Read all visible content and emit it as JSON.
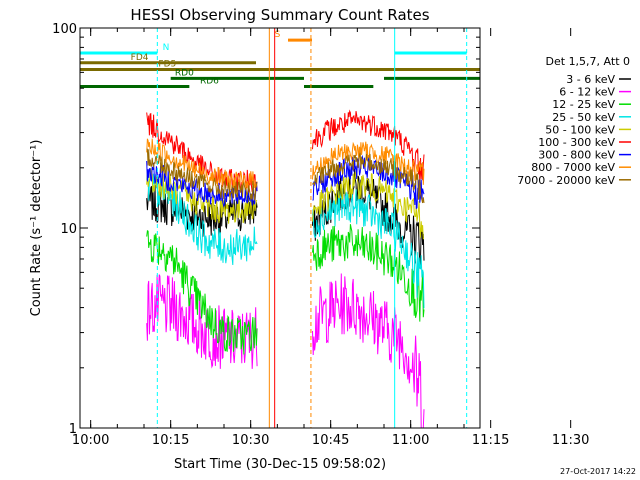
{
  "chart_data": {
    "type": "line",
    "title": "HESSI Observing Summary Count Rates",
    "xlabel": "Start Time (30-Dec-15 09:58:02)",
    "ylabel": "Count Rate (s⁻¹ detector⁻¹)",
    "yscale": "log",
    "ylim": [
      1,
      100
    ],
    "xlim_min": [
      -2,
      73
    ],
    "x_ticks": [
      "10:00",
      "10:15",
      "10:30",
      "10:45",
      "11:00",
      "11:15",
      "11:30"
    ],
    "y_ticks": [
      "1",
      "10",
      "100"
    ],
    "legend_header": "Det 1,5,7, Att 0",
    "legend_position": "right",
    "timestamp": "27-Oct-2017 14:22",
    "gaps": [
      {
        "start": 31,
        "end": 39
      }
    ],
    "series": [
      {
        "name": "3 - 6 keV",
        "color": "#000000",
        "s1": [
          13.5,
          13.2,
          12.8,
          12.3,
          11.7,
          11.4,
          11.2,
          11.3,
          11.6,
          12.2,
          12.8
        ],
        "s2": [
          10,
          12,
          14,
          15.5,
          16,
          15,
          13,
          11.5,
          10,
          9,
          8.5
        ]
      },
      {
        "name": "6 - 12 keV",
        "color": "#ff00ff",
        "s1": [
          3.9,
          4.1,
          4.0,
          3.8,
          3.4,
          3.1,
          2.9,
          2.8,
          2.7,
          2.8,
          2.9
        ],
        "s2": [
          3.3,
          3.7,
          4.0,
          4.2,
          4.0,
          3.7,
          3.3,
          3.0,
          2.8,
          2.0,
          1.3
        ]
      },
      {
        "name": "12 - 25 keV",
        "color": "#00dd00",
        "s1": [
          8.5,
          8.1,
          7.5,
          6.2,
          4.9,
          4.0,
          3.4,
          3.0,
          2.9,
          2.9,
          3.0
        ],
        "s2": [
          7.5,
          8.0,
          8.3,
          8.4,
          8.2,
          7.9,
          7.4,
          6.9,
          6.0,
          5.0,
          4.0
        ]
      },
      {
        "name": "25 - 50 keV",
        "color": "#00e5e5",
        "s1": [
          16,
          15.5,
          14.5,
          12.5,
          10.5,
          9.0,
          8.3,
          8.0,
          8.0,
          8.2,
          8.5
        ],
        "s2": [
          10.5,
          11.5,
          12.5,
          13,
          12.8,
          12,
          11,
          10,
          8.5,
          6.5,
          5
        ]
      },
      {
        "name": "50 - 100 keV",
        "color": "#cccc00",
        "s1": [
          17.5,
          17,
          16,
          15,
          14,
          13.2,
          12.5,
          12.2,
          12.2,
          12.5,
          13
        ],
        "s2": [
          12,
          13.5,
          15,
          16,
          16.5,
          16.3,
          15.5,
          14.5,
          13,
          12,
          11
        ]
      },
      {
        "name": "100 - 300 keV",
        "color": "#ff0000",
        "s1": [
          34,
          31,
          28,
          25,
          22.5,
          20,
          18.5,
          17.5,
          17,
          17,
          17.5
        ],
        "s2": [
          27,
          30,
          32,
          33.5,
          34,
          33.5,
          32,
          30,
          27,
          23,
          19
        ]
      },
      {
        "name": "300 - 800 keV",
        "color": "#0000ff",
        "s1": [
          19.5,
          18.5,
          17.5,
          16.5,
          15.7,
          15.2,
          14.8,
          14.6,
          14.5,
          14.6,
          14.8
        ],
        "s2": [
          15,
          17,
          18.5,
          19.5,
          20,
          19.8,
          19.2,
          18.3,
          17,
          15.5,
          14
        ]
      },
      {
        "name": "800 - 7000 keV",
        "color": "#ff8c00",
        "s1": [
          26,
          24.5,
          23,
          21.5,
          20,
          19,
          18.2,
          17.6,
          17.2,
          17.2,
          17.5
        ],
        "s2": [
          19,
          21,
          23,
          24,
          24.5,
          24.2,
          23.5,
          22.5,
          21,
          19.5,
          17.5
        ]
      },
      {
        "name": "7000 - 20000 keV",
        "color": "#9b6b00",
        "s1": [
          23,
          21.5,
          20,
          18.8,
          17.8,
          16.8,
          16.0,
          15.5,
          15.2,
          15.2,
          15.4
        ],
        "s2": [
          17,
          18.5,
          20,
          21,
          21.5,
          21.3,
          20.8,
          20,
          18.5,
          17,
          15.5
        ]
      }
    ],
    "flags": [
      {
        "label": "N",
        "color": "#00ffff",
        "y": 75,
        "spans": [
          [
            -2,
            12.5
          ],
          [
            57,
            70.5
          ]
        ],
        "label_x": 13.5
      },
      {
        "label": "S",
        "color": "#ff8800",
        "y": 87,
        "spans": [
          [
            37,
            41.5
          ]
        ],
        "label_x": 34.5
      },
      {
        "label": "FD4",
        "color": "#7a6a00",
        "y": 67,
        "spans": [
          [
            -2,
            31
          ]
        ],
        "label_x": 7.5
      },
      {
        "label": "FD5",
        "color": "#7a6a00",
        "y": 62,
        "spans": [
          [
            -2,
            73
          ]
        ],
        "label_x": 12.7
      },
      {
        "label": "RD0",
        "color": "#006600",
        "y": 56,
        "spans": [
          [
            15,
            40
          ],
          [
            55,
            73
          ]
        ],
        "label_x": 15.8
      },
      {
        "label": "RD6",
        "color": "#006600",
        "y": 51,
        "spans": [
          [
            -2,
            18.5
          ],
          [
            40,
            53
          ]
        ],
        "label_x": 20.5
      }
    ],
    "vlines": [
      {
        "x": -2,
        "color": "#00ffff",
        "style": "solid"
      },
      {
        "x": 12.5,
        "color": "#00ffff",
        "style": "dashed"
      },
      {
        "x": 57,
        "color": "#00ffff",
        "style": "solid"
      },
      {
        "x": 70.5,
        "color": "#00ffff",
        "style": "dashed"
      },
      {
        "x": 33.5,
        "color": "#ff8800",
        "style": "solid"
      },
      {
        "x": 41.3,
        "color": "#ff8800",
        "style": "dashed"
      },
      {
        "x": 34.5,
        "color": "#ff0000",
        "style": "solid"
      }
    ]
  }
}
